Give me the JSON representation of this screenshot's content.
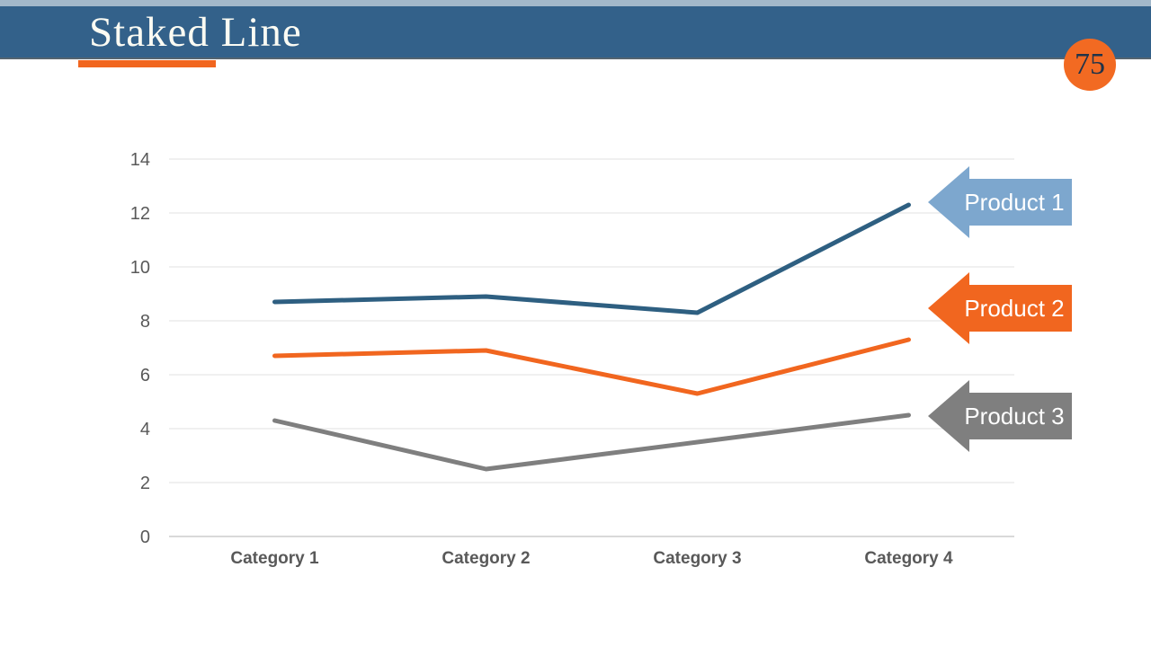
{
  "slide": {
    "title": "Staked Line",
    "page_number": "75",
    "accent_color": "#F1661F",
    "header_color": "#33618A",
    "top_strip_color": "#A3B8CA",
    "badge_color": "#F26A22"
  },
  "chart_data": {
    "type": "line",
    "stacked": true,
    "title": "",
    "xlabel": "",
    "ylabel": "",
    "categories": [
      "Category 1",
      "Category 2",
      "Category 3",
      "Category 4"
    ],
    "series": [
      {
        "name": "Product 1",
        "color": "#2E5F81",
        "values": [
          8.7,
          8.9,
          8.3,
          12.3
        ]
      },
      {
        "name": "Product 2",
        "color": "#F1661F",
        "values": [
          6.7,
          6.9,
          5.3,
          7.3
        ]
      },
      {
        "name": "Product 3",
        "color": "#7F7F7F",
        "values": [
          4.3,
          2.5,
          3.5,
          4.5
        ]
      }
    ],
    "y_ticks": [
      0,
      2,
      4,
      6,
      8,
      10,
      12,
      14
    ],
    "ylim": [
      0,
      14
    ],
    "grid": true,
    "legend": {
      "position": "right",
      "shape": "left-arrow",
      "entries": [
        {
          "label": "Product 1",
          "color": "#7DA7CE"
        },
        {
          "label": "Product 2",
          "color": "#F1661F"
        },
        {
          "label": "Product 3",
          "color": "#7F7F7F"
        }
      ]
    }
  }
}
